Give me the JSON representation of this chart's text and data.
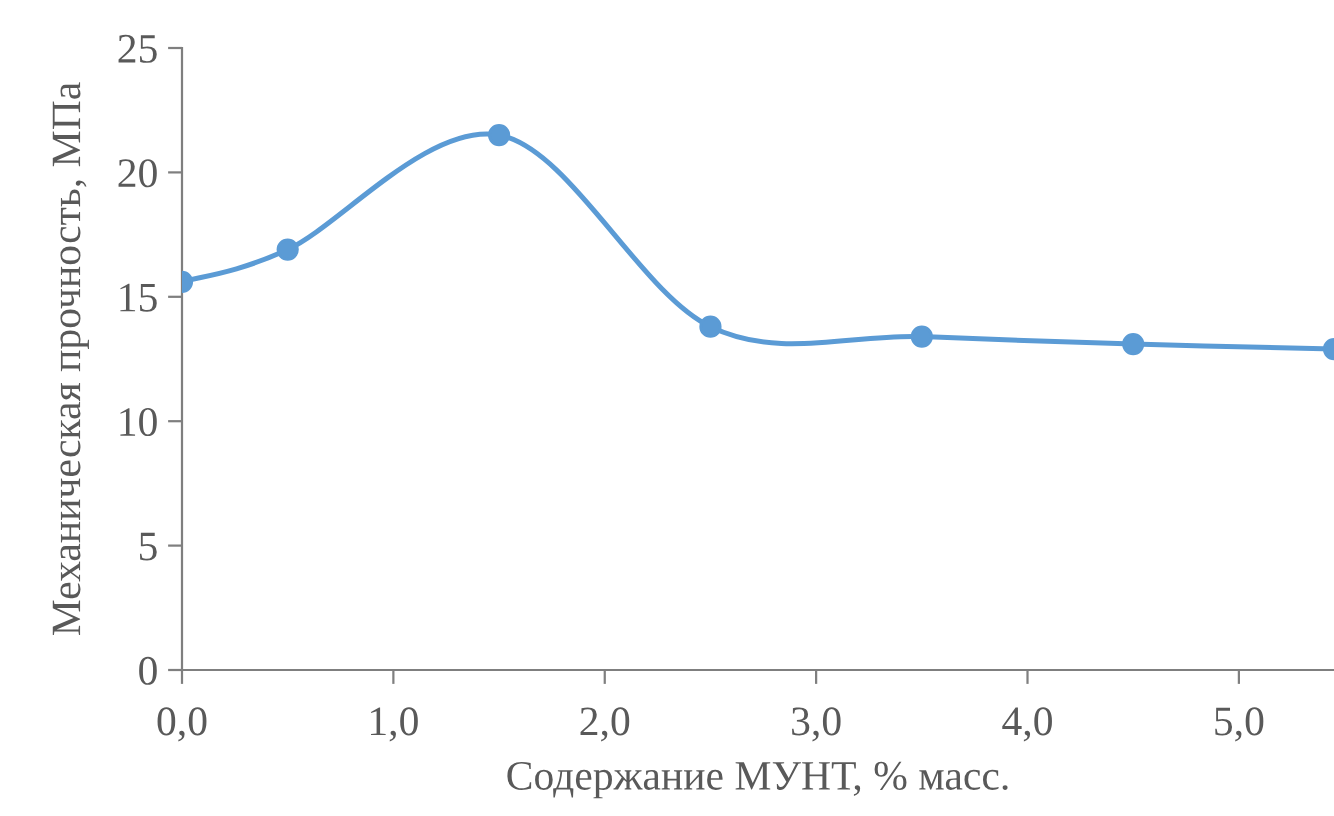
{
  "chart_data": {
    "type": "line",
    "xlabel": "Содержание МУНТ, % масс.",
    "ylabel": "Механическая прочность, МПа",
    "x": [
      0.0,
      0.5,
      1.5,
      2.5,
      3.5,
      4.5,
      5.45
    ],
    "series": [
      {
        "color": "#5b9bd5",
        "values": [
          15.6,
          16.9,
          21.5,
          13.8,
          13.4,
          13.1,
          12.9
        ]
      }
    ],
    "xlim": [
      0,
      5.45
    ],
    "xticks": [
      {
        "value": 0,
        "label": "0,0"
      },
      {
        "value": 1,
        "label": "1,0"
      },
      {
        "value": 2,
        "label": "2,0"
      },
      {
        "value": 3,
        "label": "3,0"
      },
      {
        "value": 4,
        "label": "4,0"
      },
      {
        "value": 5,
        "label": "5,0"
      }
    ],
    "ylim": [
      0,
      25
    ],
    "yticks": [
      0,
      5,
      10,
      15,
      20,
      25
    ],
    "marker": "circle",
    "line_style": "solid",
    "grid": false,
    "legend": false
  }
}
